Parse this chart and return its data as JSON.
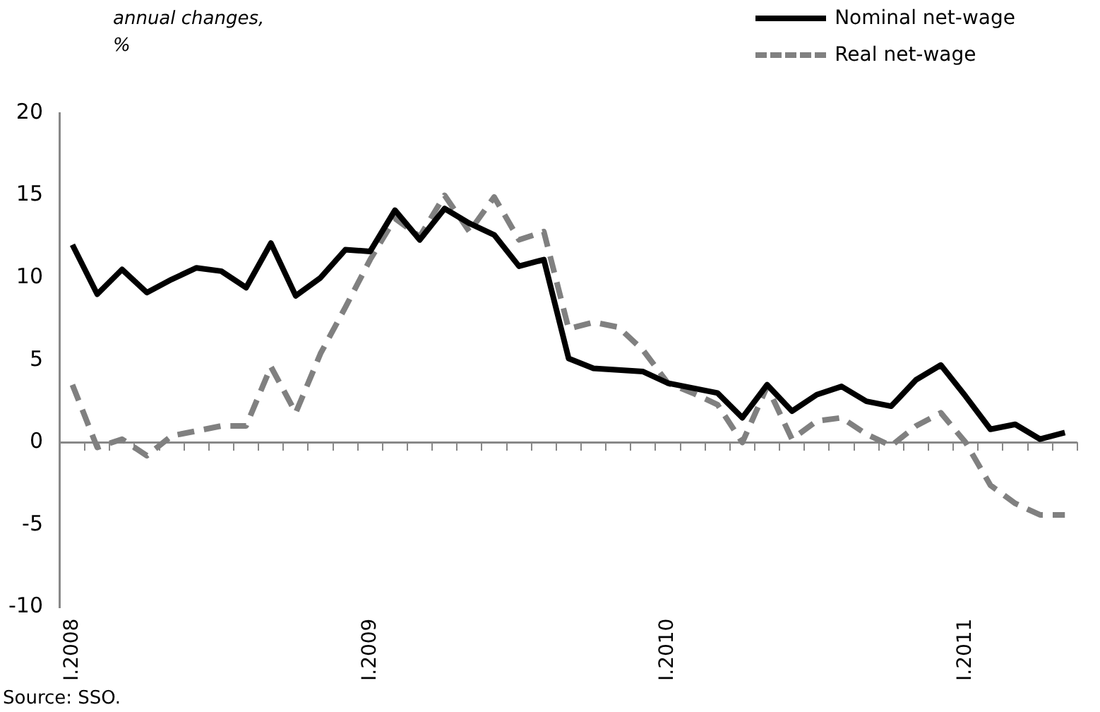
{
  "chart_data": {
    "type": "line",
    "ylabel": "annual changes, %",
    "annotations": [
      "Source: SSO."
    ],
    "categories": [
      "I.2008",
      null,
      null,
      null,
      null,
      null,
      null,
      null,
      null,
      null,
      null,
      null,
      "I.2009",
      null,
      null,
      null,
      null,
      null,
      null,
      null,
      null,
      null,
      null,
      null,
      "I.2010",
      null,
      null,
      null,
      null,
      null,
      null,
      null,
      null,
      null,
      null,
      null,
      "I.2011",
      null,
      null,
      null,
      null
    ],
    "series": [
      {
        "name": "Nominal net-wage",
        "color": "#000000",
        "values": [
          12.0,
          9.0,
          10.5,
          9.1,
          9.9,
          10.6,
          10.4,
          9.4,
          12.1,
          8.9,
          10.0,
          11.7,
          11.6,
          14.1,
          12.3,
          14.2,
          13.3,
          12.6,
          10.7,
          11.1,
          5.1,
          4.5,
          4.4,
          4.3,
          3.6,
          3.3,
          3.0,
          1.5,
          3.5,
          1.9,
          2.9,
          3.4,
          2.5,
          2.2,
          3.8,
          4.7,
          2.8,
          0.8,
          1.1,
          0.2,
          0.6
        ]
      },
      {
        "name": "Real net-wage",
        "color": "#808080",
        "line_style": "dashed",
        "values": [
          3.5,
          -0.3,
          0.2,
          -0.8,
          0.4,
          0.7,
          1.0,
          1.0,
          4.6,
          1.8,
          5.4,
          8.2,
          11.1,
          13.6,
          12.5,
          15.0,
          12.8,
          14.9,
          12.3,
          12.8,
          6.9,
          7.3,
          7.0,
          5.6,
          3.6,
          3.0,
          2.3,
          0.0,
          3.4,
          0.2,
          1.3,
          1.5,
          0.5,
          -0.2,
          1.0,
          1.8,
          0.0,
          -2.6,
          -3.7,
          -4.4,
          -4.4
        ]
      }
    ],
    "ylim": [
      -10,
      20
    ],
    "yticks": [
      -10,
      -5,
      0,
      5,
      10,
      15,
      20
    ],
    "grid": false,
    "ref_lines": [
      {
        "axis": "y",
        "value": 0,
        "color": "#888888"
      }
    ],
    "legend": "top right",
    "marker": "none",
    "line_style": "solid"
  }
}
